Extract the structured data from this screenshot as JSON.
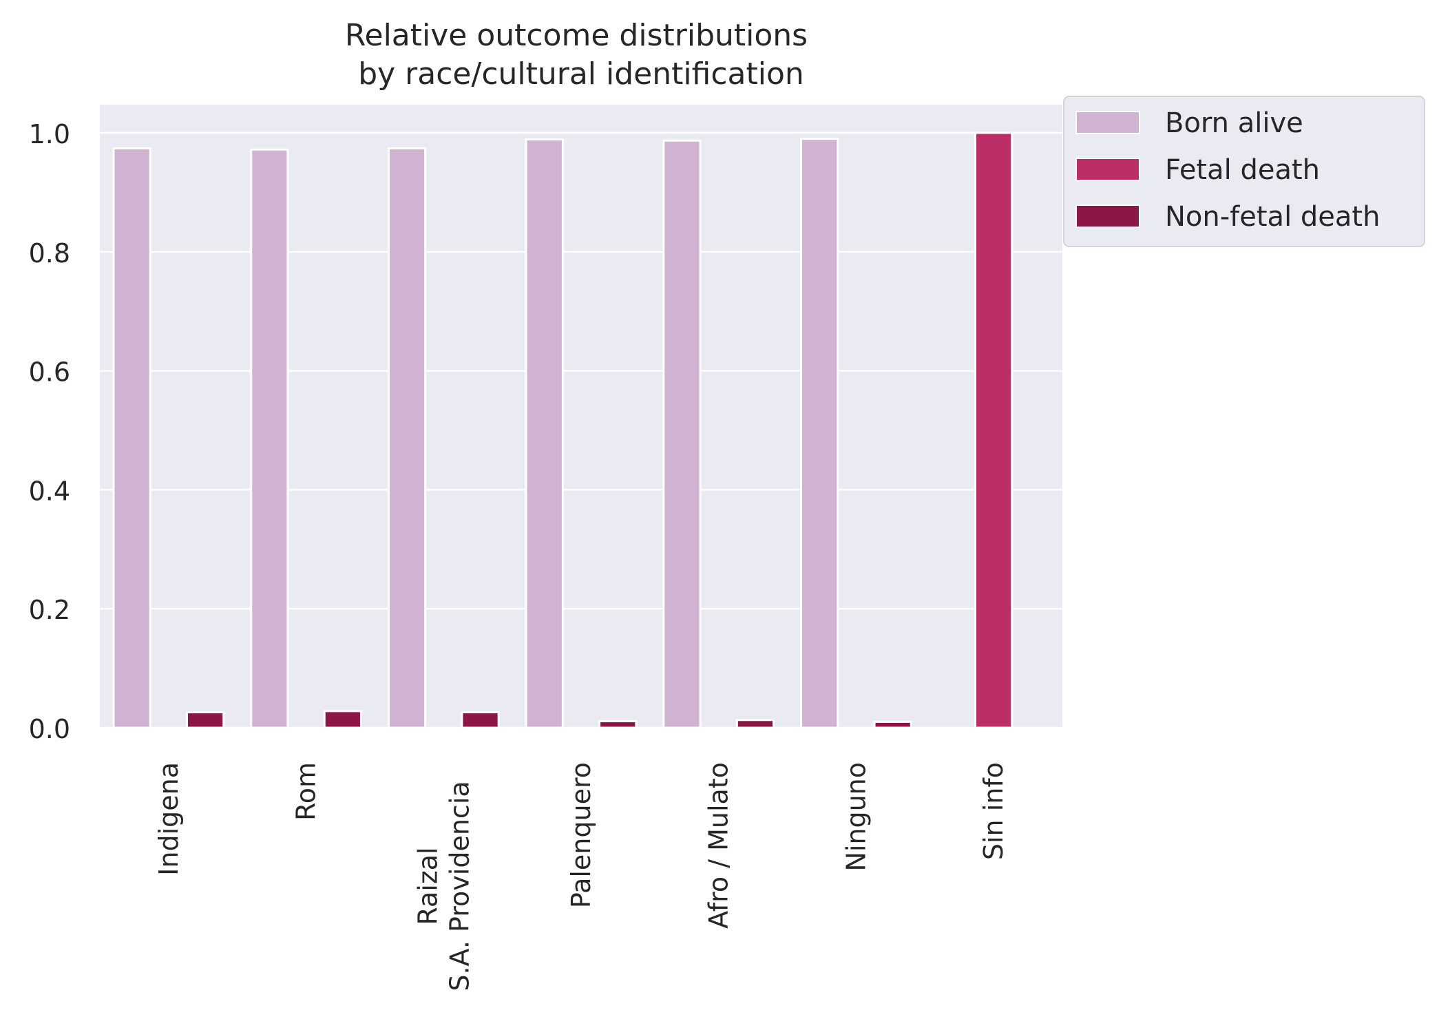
{
  "chart_data": {
    "type": "bar",
    "title": "Relative outcome distributions\nby race/cultural identification",
    "xlabel": "",
    "ylabel": "",
    "categories": [
      "Indigena",
      "Rom",
      "Raizal\nS.A. Providencia",
      "Palenquero",
      "Afro / Mulato",
      "Ninguno",
      "Sin info"
    ],
    "series": [
      {
        "name": "Born alive",
        "color": "#cfb3d1",
        "values": [
          0.974,
          0.972,
          0.974,
          0.989,
          0.987,
          0.99,
          0.0
        ]
      },
      {
        "name": "Fetal death",
        "color": "#bc2e68",
        "values": [
          0.0,
          0.0,
          0.0,
          0.0,
          0.0,
          0.0,
          1.0
        ]
      },
      {
        "name": "Non-fetal death",
        "color": "#8c1648",
        "values": [
          0.026,
          0.028,
          0.026,
          0.011,
          0.013,
          0.01,
          0.0
        ]
      }
    ],
    "ylim": [
      0.0,
      1.05
    ],
    "yticks": [
      "0.0",
      "0.2",
      "0.4",
      "0.6",
      "0.8",
      "1.0"
    ],
    "grid": true,
    "legend_position": "outside top-right",
    "colors": {
      "plot_background": "#eaeaf2",
      "grid": "#ffffff",
      "text": "#262626"
    }
  }
}
